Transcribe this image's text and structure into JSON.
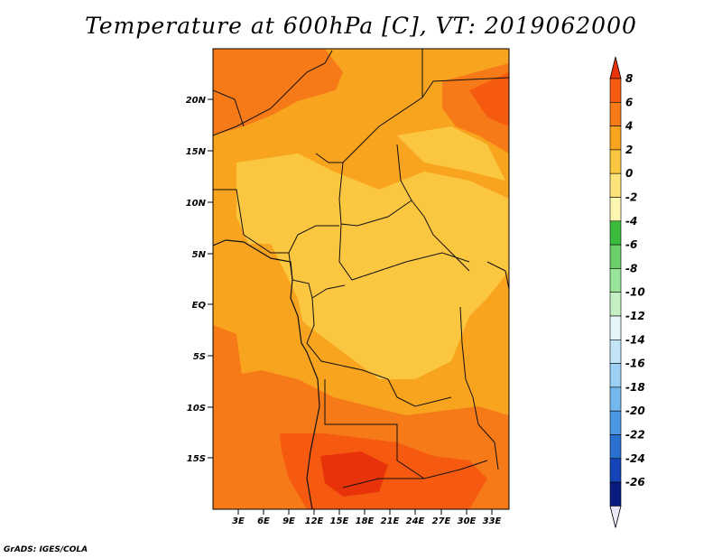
{
  "title": "Temperature at 600hPa [C], VT: 2019062000",
  "credit": "GrADS: IGES/COLA",
  "lat_labels": [
    "20N",
    "15N",
    "10N",
    "5N",
    "EQ",
    "5S",
    "10S",
    "15S"
  ],
  "lon_labels": [
    "3E",
    "6E",
    "9E",
    "12E",
    "15E",
    "18E",
    "21E",
    "24E",
    "27E",
    "30E",
    "33E"
  ],
  "colorbar": {
    "labels": [
      "8",
      "6",
      "4",
      "2",
      "0",
      "-2",
      "-4",
      "-6",
      "-8",
      "-10",
      "-12",
      "-14",
      "-16",
      "-18",
      "-20",
      "-22",
      "-24",
      "-26"
    ],
    "colors": [
      "#e8330a",
      "#f65a10",
      "#f77a18",
      "#f9a41e",
      "#fbc740",
      "#fde37a",
      "#fdf6b0",
      "#3cbc3c",
      "#6ad06a",
      "#98e498",
      "#c4f0c4",
      "#e6f6fb",
      "#c4e4f8",
      "#9cd0f4",
      "#74b8ee",
      "#4c98e4",
      "#2a70d0",
      "#1444b8",
      "#0a1c80",
      "#e8e8f8"
    ]
  },
  "map_colors": {
    "warm_8": "#e8330a",
    "warm_6": "#f65a10",
    "warm_4": "#f77a18",
    "warm_2": "#f9a41e",
    "warm_0": "#fbc740",
    "border": "#111111"
  }
}
